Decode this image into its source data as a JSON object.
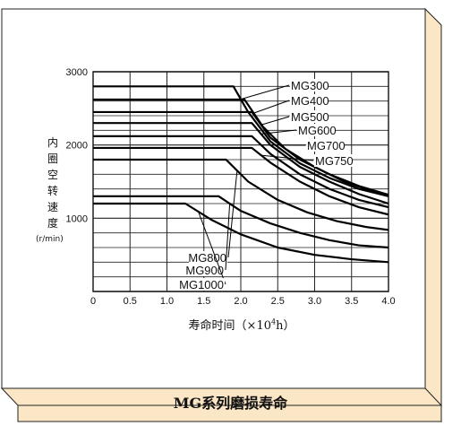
{
  "chart_data": {
    "type": "line",
    "title": "MG系列磨损寿命",
    "xlabel_main": "寿命时间（×10",
    "xlabel_sup": "4",
    "xlabel_end": "h）",
    "ylabel_chars": [
      "内",
      "圈",
      "空",
      "转",
      "速",
      "度"
    ],
    "ylabel_unit": "(r/min)",
    "xlim": [
      0,
      4.0
    ],
    "ylim": [
      0,
      3000
    ],
    "x_ticks": [
      "0",
      "0.5",
      "1.0",
      "1.5",
      "2.0",
      "2.5",
      "3.0",
      "3.5",
      "4.0"
    ],
    "y_ticks": [
      {
        "value": 1000,
        "label": "1000"
      },
      {
        "value": 2000,
        "label": "2000"
      },
      {
        "value": 3000,
        "label": "3000"
      }
    ],
    "grid": true,
    "series": [
      {
        "name": "MG300",
        "x": [
          0,
          1.9,
          2.1,
          2.4,
          2.8,
          3.2,
          3.6,
          4.0
        ],
        "y": [
          2800,
          2800,
          2450,
          2050,
          1750,
          1550,
          1400,
          1300
        ]
      },
      {
        "name": "MG400",
        "x": [
          0,
          2.05,
          2.3,
          2.6,
          3.0,
          3.4,
          3.8,
          4.0
        ],
        "y": [
          2620,
          2620,
          2250,
          1950,
          1700,
          1500,
          1360,
          1300
        ]
      },
      {
        "name": "MG500",
        "x": [
          0,
          2.15,
          2.4,
          2.8,
          3.2,
          3.6,
          4.0
        ],
        "y": [
          2450,
          2450,
          2100,
          1800,
          1600,
          1440,
          1320
        ]
      },
      {
        "name": "MG600",
        "x": [
          0,
          2.15,
          2.4,
          2.8,
          3.2,
          3.6,
          4.0
        ],
        "y": [
          2300,
          2300,
          2000,
          1700,
          1500,
          1330,
          1200
        ]
      },
      {
        "name": "MG700",
        "x": [
          0,
          2.15,
          2.4,
          2.8,
          3.2,
          3.6,
          4.0
        ],
        "y": [
          2120,
          2120,
          1880,
          1600,
          1400,
          1250,
          1150
        ]
      },
      {
        "name": "MG750",
        "x": [
          0,
          2.15,
          2.4,
          2.8,
          3.2,
          3.6,
          4.0
        ],
        "y": [
          1960,
          1960,
          1760,
          1500,
          1300,
          1150,
          1050
        ]
      },
      {
        "name": "MG800",
        "x": [
          0,
          1.8,
          2.1,
          2.5,
          2.9,
          3.3,
          3.7,
          4.0
        ],
        "y": [
          1800,
          1800,
          1500,
          1250,
          1080,
          960,
          880,
          840
        ]
      },
      {
        "name": "MG900",
        "x": [
          0,
          1.7,
          2.0,
          2.4,
          2.8,
          3.2,
          3.6,
          4.0
        ],
        "y": [
          1300,
          1300,
          1100,
          930,
          800,
          700,
          630,
          600
        ]
      },
      {
        "name": "MG1000",
        "x": [
          0,
          1.25,
          1.6,
          2.0,
          2.5,
          3.0,
          3.5,
          4.0
        ],
        "y": [
          1200,
          1200,
          980,
          780,
          600,
          500,
          440,
          400
        ]
      }
    ]
  }
}
